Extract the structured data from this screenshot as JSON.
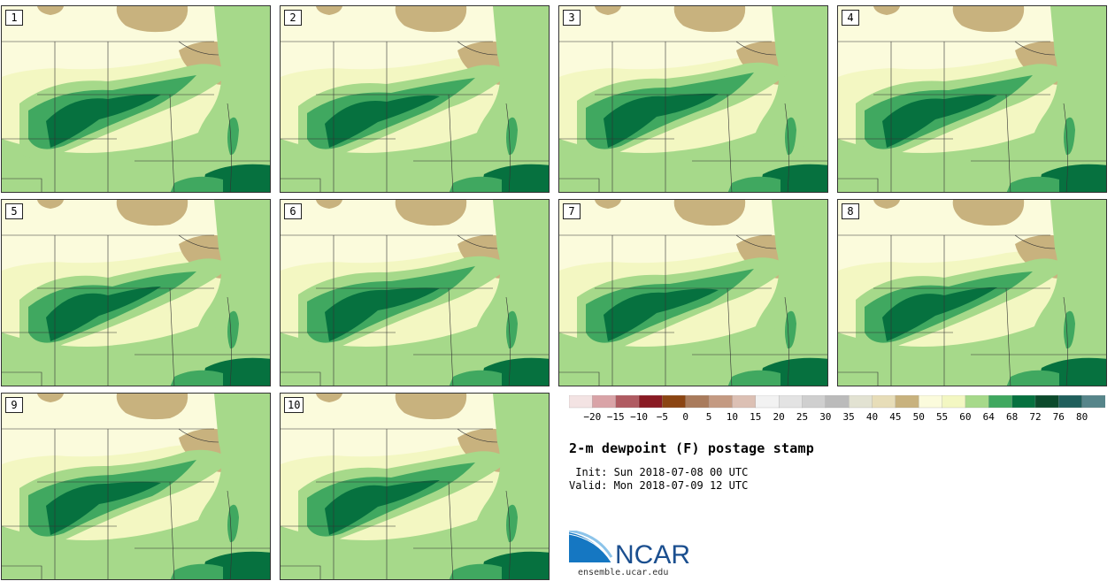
{
  "stamps": [
    {
      "label": "1"
    },
    {
      "label": "2"
    },
    {
      "label": "3"
    },
    {
      "label": "4"
    },
    {
      "label": "5"
    },
    {
      "label": "6"
    },
    {
      "label": "7"
    },
    {
      "label": "8"
    },
    {
      "label": "9"
    },
    {
      "label": "10"
    }
  ],
  "colorbar": {
    "tick_labels": [
      "−20",
      "−15",
      "−10",
      "−5",
      "0",
      "5",
      "10",
      "15",
      "20",
      "25",
      "30",
      "35",
      "40",
      "45",
      "50",
      "55",
      "60",
      "64",
      "68",
      "72",
      "76",
      "80"
    ],
    "colors": [
      "#f3e3e3",
      "#d9a3a7",
      "#b05b62",
      "#8a1b24",
      "#8b4513",
      "#a97b5c",
      "#c49a82",
      "#dcc0b4",
      "#f2f2f2",
      "#e3e3e3",
      "#cfcfcf",
      "#bbbbbb",
      "#e2e2d2",
      "#e7ddb8",
      "#c8b27e",
      "#fbfbdc",
      "#f3f7c2",
      "#a6d98a",
      "#40a860",
      "#06713f",
      "#0c4a2c",
      "#1f5f5c",
      "#56858a"
    ]
  },
  "title": "2-m dewpoint (F) postage stamp",
  "init_line": " Init: Sun 2018-07-08 00 UTC",
  "valid_line": "Valid: Mon 2018-07-09 12 UTC",
  "logo": {
    "text": "NCAR",
    "url": "ensemble.ucar.edu"
  }
}
